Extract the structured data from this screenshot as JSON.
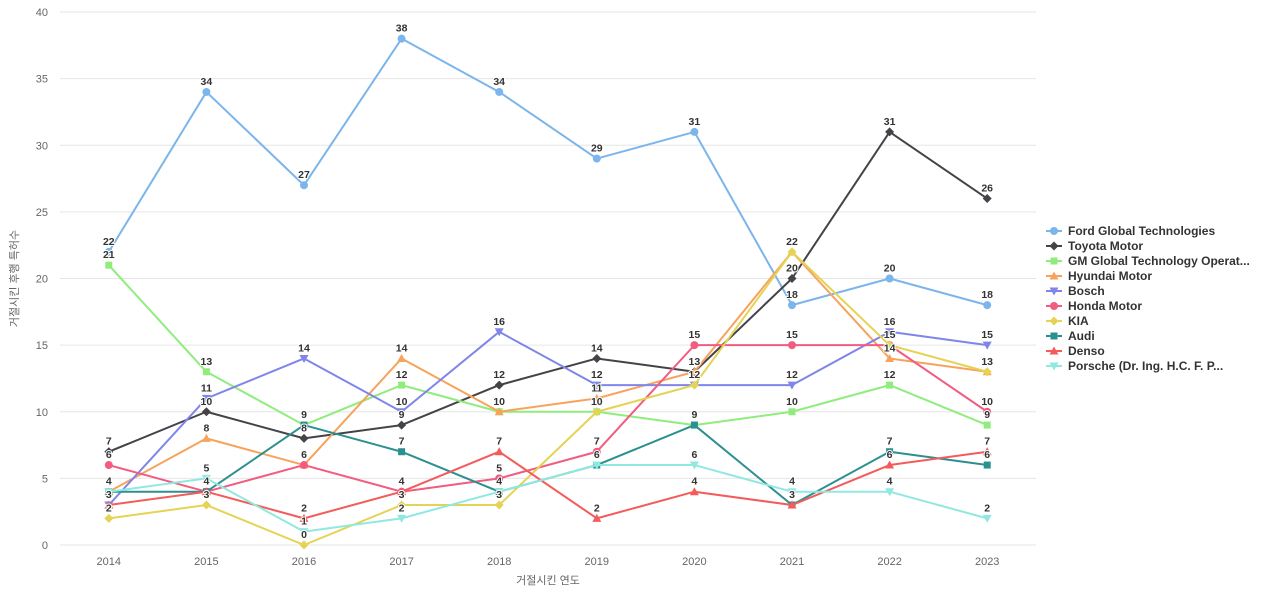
{
  "chart_data": {
    "type": "line",
    "title": "",
    "xlabel": "거절시킨 연도",
    "ylabel": "거절시킨 후행 특허수",
    "categories": [
      "2014",
      "2015",
      "2016",
      "2017",
      "2018",
      "2019",
      "2020",
      "2021",
      "2022",
      "2023"
    ],
    "ylim": [
      0,
      40
    ],
    "yticks": [
      0,
      5,
      10,
      15,
      20,
      25,
      30,
      35,
      40
    ],
    "grid": "horizontal-only",
    "legend_position": "right-middle",
    "data_labels_visible": true,
    "colors": {
      "background": "#ffffff",
      "gridline": "#e6e6e6",
      "axis_text": "#666666",
      "data_label_text": "#333333",
      "legend_text": "#333333"
    },
    "series": [
      {
        "name": "Ford Global Technologies",
        "color": "#7cb5ec",
        "marker": "circle",
        "values": [
          22,
          34,
          27,
          38,
          34,
          29,
          31,
          18,
          20,
          18
        ]
      },
      {
        "name": "Toyota Motor",
        "color": "#434348",
        "marker": "diamond",
        "values": [
          7,
          10,
          8,
          9,
          12,
          14,
          13,
          20,
          31,
          26
        ]
      },
      {
        "name": "GM Global Technology Operat...",
        "color": "#90ed7d",
        "marker": "square",
        "values": [
          21,
          13,
          9,
          12,
          10,
          10,
          9,
          10,
          12,
          9
        ]
      },
      {
        "name": "Hyundai Motor",
        "color": "#f7a35c",
        "marker": "triangle",
        "values": [
          4,
          8,
          6,
          14,
          10,
          11,
          13,
          22,
          14,
          13
        ]
      },
      {
        "name": "Bosch",
        "color": "#8085e9",
        "marker": "triangle-down",
        "values": [
          3,
          11,
          14,
          10,
          16,
          12,
          12,
          12,
          16,
          15
        ]
      },
      {
        "name": "Honda Motor",
        "color": "#f15c80",
        "marker": "circle",
        "values": [
          6,
          4,
          6,
          4,
          5,
          7,
          15,
          15,
          15,
          10
        ]
      },
      {
        "name": "KIA",
        "color": "#e4d354",
        "marker": "diamond",
        "values": [
          2,
          3,
          0,
          3,
          3,
          10,
          12,
          22,
          15,
          13
        ]
      },
      {
        "name": "Audi",
        "color": "#2b908f",
        "marker": "square",
        "values": [
          4,
          4,
          9,
          7,
          4,
          6,
          9,
          3,
          7,
          6
        ]
      },
      {
        "name": "Denso",
        "color": "#f45b5b",
        "marker": "triangle",
        "values": [
          3,
          4,
          2,
          4,
          7,
          2,
          4,
          3,
          6,
          7
        ]
      },
      {
        "name": "Porsche (Dr. Ing. H.C. F. P...",
        "color": "#91e8e1",
        "marker": "triangle-down",
        "values": [
          4,
          5,
          1,
          2,
          4,
          6,
          6,
          4,
          4,
          2
        ]
      }
    ]
  }
}
